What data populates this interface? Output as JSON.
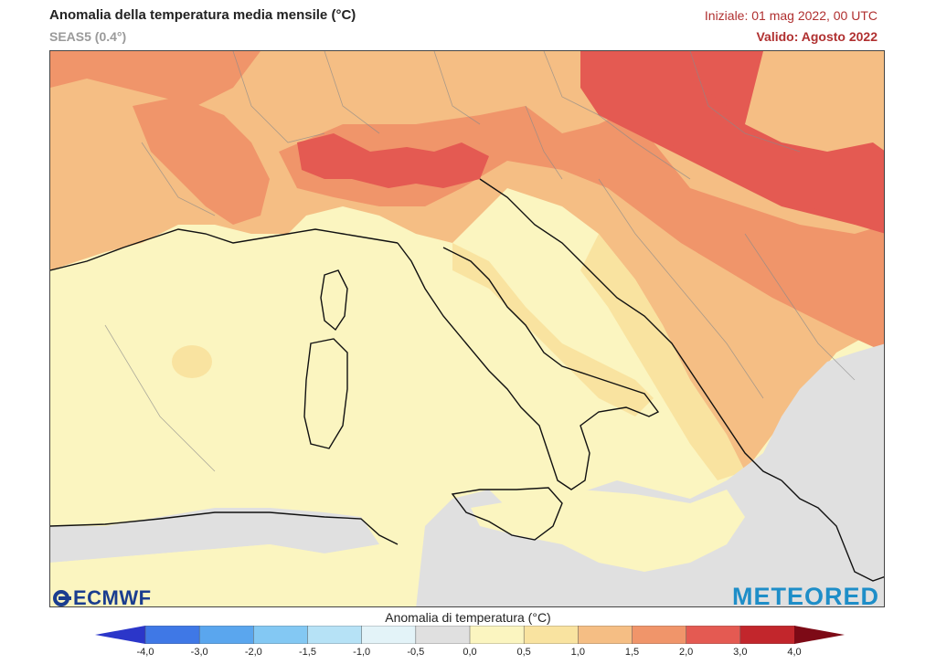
{
  "header": {
    "title": "Anomalia della temperatura media mensile (°C)",
    "model": "SEAS5 (0.4°)",
    "init": "Iniziale: 01 mag 2022, 00 UTC",
    "valid": "Valido: Agosto 2022"
  },
  "branding": {
    "left_logo": "ECMWF",
    "right_logo": "METEORED"
  },
  "legend": {
    "title": "Anomalia di temperatura (°C)",
    "ticks": [
      "-4,0",
      "-3,0",
      "-2,0",
      "-1,5",
      "-1,0",
      "-0,5",
      "0,0",
      "0,5",
      "1,0",
      "1,5",
      "2,0",
      "3,0",
      "4,0"
    ],
    "colors": [
      "#2b36c9",
      "#3f78e6",
      "#5aa6ee",
      "#83c8f3",
      "#b6e2f6",
      "#e3f3f8",
      "#e0e0e0",
      "#fbf5c0",
      "#f9e3a0",
      "#f5be84",
      "#f0956a",
      "#e45a52",
      "#c2262c",
      "#7d0a16"
    ]
  },
  "map_regions": {
    "colors": {
      "sea_neutral": "#e0e0e0",
      "low": "#fbf5c0",
      "mid": "#f9e3a0",
      "high": "#f5be84",
      "very_high": "#f0956a",
      "extreme": "#e45a52"
    }
  }
}
